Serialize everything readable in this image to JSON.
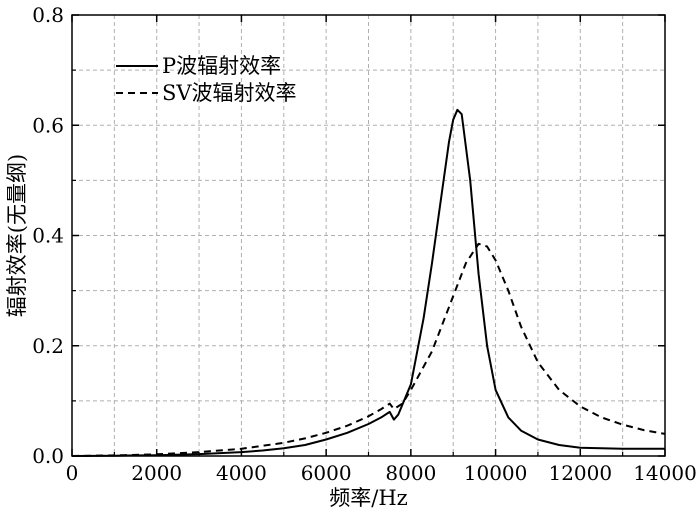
{
  "chart_data": {
    "type": "line",
    "title": "",
    "xlabel": "频率/Hz",
    "ylabel": "辐射效率(无量纲)",
    "xlim": [
      0,
      14000
    ],
    "ylim": [
      0,
      0.8
    ],
    "x_ticks": [
      "0",
      "2000",
      "4000",
      "6000",
      "8000",
      "10000",
      "12000",
      "14000"
    ],
    "y_ticks": [
      "0.0",
      "0.2",
      "0.4",
      "0.6",
      "0.8"
    ],
    "grid": true,
    "legend_position": "top-left",
    "series": [
      {
        "name": "P波辐射效率",
        "style": "solid",
        "color": "#000000",
        "x": [
          0,
          1000,
          2000,
          3000,
          4000,
          4500,
          5000,
          5500,
          6000,
          6500,
          7000,
          7300,
          7500,
          7600,
          7700,
          8000,
          8300,
          8500,
          8700,
          8900,
          9000,
          9100,
          9200,
          9400,
          9600,
          9800,
          10000,
          10300,
          10600,
          11000,
          11500,
          12000,
          13000,
          14000
        ],
        "y": [
          0.0,
          0.0005,
          0.0015,
          0.0035,
          0.007,
          0.01,
          0.014,
          0.02,
          0.03,
          0.042,
          0.058,
          0.07,
          0.08,
          0.066,
          0.075,
          0.13,
          0.25,
          0.35,
          0.46,
          0.57,
          0.61,
          0.628,
          0.62,
          0.5,
          0.33,
          0.2,
          0.12,
          0.07,
          0.046,
          0.03,
          0.02,
          0.015,
          0.013,
          0.013
        ]
      },
      {
        "name": "SV波辐射效率",
        "style": "dashed",
        "color": "#000000",
        "x": [
          0,
          1000,
          2000,
          3000,
          4000,
          5000,
          5500,
          6000,
          6500,
          7000,
          7300,
          7500,
          7600,
          7800,
          8000,
          8500,
          9000,
          9300,
          9600,
          9800,
          10000,
          10300,
          10600,
          11000,
          11500,
          12000,
          12500,
          13000,
          13500,
          14000
        ],
        "y": [
          0.0,
          0.001,
          0.003,
          0.007,
          0.013,
          0.024,
          0.032,
          0.042,
          0.055,
          0.072,
          0.085,
          0.095,
          0.085,
          0.095,
          0.12,
          0.19,
          0.29,
          0.35,
          0.385,
          0.38,
          0.355,
          0.3,
          0.235,
          0.17,
          0.12,
          0.09,
          0.07,
          0.057,
          0.047,
          0.04
        ]
      }
    ]
  }
}
